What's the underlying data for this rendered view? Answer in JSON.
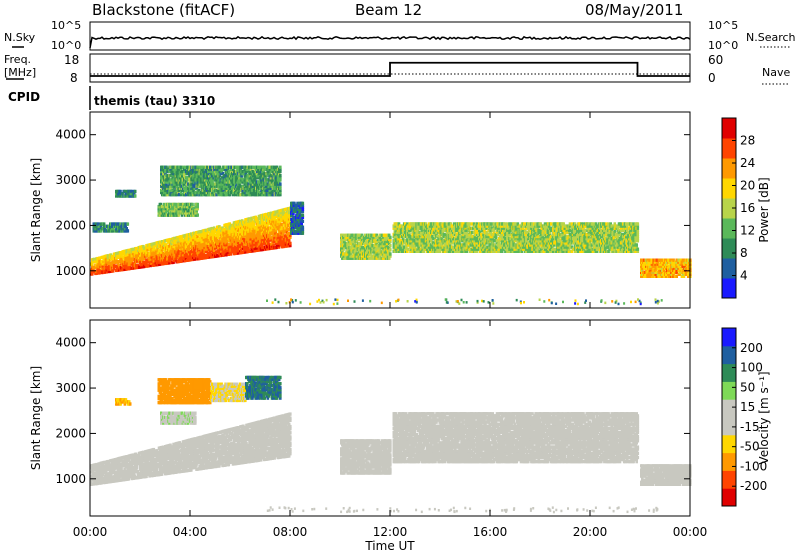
{
  "header": {
    "station": "Blackstone (fitACF)",
    "beam": "Beam 12",
    "date": "08/May/2011"
  },
  "top_panels": {
    "nsky_label": "N.Sky",
    "nsearch_label": "N.Search",
    "nsky_ticks": [
      "10^5",
      "10^0"
    ],
    "nsearch_ticks": [
      "10^5",
      "10^0"
    ],
    "freq_label": "Freq.",
    "freq_unit": "[MHz]",
    "freq_ticks": [
      "18",
      "8"
    ],
    "nave_label": "Nave",
    "nave_ticks": [
      "60",
      "0"
    ],
    "cpid_label": "CPID",
    "cpid_value": "themis (tau) 3310"
  },
  "colors": {
    "power": [
      "#1a1aff",
      "#1f5fa0",
      "#2e8b57",
      "#5ab85a",
      "#b8d44a",
      "#ffd700",
      "#ff9900",
      "#ff4400",
      "#e00000"
    ],
    "velocity": [
      "#e00000",
      "#ff4400",
      "#ff9900",
      "#ffd700",
      "#c8c8c0",
      "#c8c8c0",
      "#7ed957",
      "#2e8b57",
      "#1f5fa0",
      "#1a1aff"
    ],
    "ground_scatter": "#c8c8c0"
  },
  "chart_data": [
    {
      "type": "heatmap",
      "title": "",
      "ylabel": "Slant Range [km]",
      "ylim": [
        180,
        4500
      ],
      "yticks": [
        "1000",
        "2000",
        "3000",
        "4000"
      ],
      "colorbar": {
        "label": "Power [dB]",
        "ticks": [
          "4",
          "8",
          "12",
          "16",
          "20",
          "24",
          "28"
        ],
        "range": [
          0,
          30
        ]
      },
      "bands": [
        {
          "t0": 0.0,
          "t1": 8.0,
          "r0": 900,
          "r1": 1250,
          "r1_end": 2400,
          "value": 18
        },
        {
          "t0": 0.1,
          "t1": 1.5,
          "r0": 1850,
          "r1": 2050,
          "value": 8
        },
        {
          "t0": 1.0,
          "t1": 1.8,
          "r0": 2620,
          "r1": 2770,
          "value": 8
        },
        {
          "t0": 2.7,
          "t1": 4.3,
          "r0": 2200,
          "r1": 2480,
          "value": 12
        },
        {
          "t0": 2.8,
          "t1": 7.6,
          "r0": 2650,
          "r1": 3300,
          "value": 10
        },
        {
          "t0": 8.0,
          "t1": 8.5,
          "r0": 1800,
          "r1": 2500,
          "value": 6
        },
        {
          "t0": 10.0,
          "t1": 12.0,
          "r0": 1250,
          "r1": 1800,
          "value": 14
        },
        {
          "t0": 12.1,
          "t1": 21.9,
          "r0": 1400,
          "r1": 2050,
          "value": 14
        },
        {
          "t0": 22.0,
          "t1": 24.0,
          "r0": 850,
          "r1": 1250,
          "value": 20
        }
      ]
    },
    {
      "type": "heatmap",
      "title": "",
      "xlabel": "Time UT",
      "ylabel": "Slant Range [km]",
      "ylim": [
        180,
        4500
      ],
      "yticks": [
        "1000",
        "2000",
        "3000",
        "4000"
      ],
      "xticks": [
        "00:00",
        "04:00",
        "08:00",
        "12:00",
        "16:00",
        "20:00",
        "00:00"
      ],
      "colorbar": {
        "label": "Velocity [m s⁻¹]",
        "ticks": [
          "200",
          "100",
          "50",
          "15",
          "-15",
          "-50",
          "-100",
          "-200"
        ],
        "range": [
          -300,
          300
        ]
      },
      "bands": [
        {
          "t0": 0.0,
          "t1": 8.0,
          "r0": 850,
          "r1": 1300,
          "r1_end": 2450,
          "value": 0
        },
        {
          "t0": 1.0,
          "t1": 1.6,
          "r0": 2620,
          "r1": 2760,
          "value": -120
        },
        {
          "t0": 2.8,
          "t1": 4.2,
          "r0": 2200,
          "r1": 2460,
          "value": 40
        },
        {
          "t0": 2.7,
          "t1": 4.8,
          "r0": 2650,
          "r1": 3200,
          "value": -150
        },
        {
          "t0": 4.8,
          "t1": 6.2,
          "r0": 2700,
          "r1": 3100,
          "value": -60
        },
        {
          "t0": 6.2,
          "t1": 7.6,
          "r0": 2750,
          "r1": 3250,
          "value": 180
        },
        {
          "t0": 10.0,
          "t1": 12.0,
          "r0": 1100,
          "r1": 1850,
          "value": 0
        },
        {
          "t0": 12.1,
          "t1": 21.9,
          "r0": 1350,
          "r1": 2450,
          "value": 0
        },
        {
          "t0": 22.0,
          "t1": 24.0,
          "r0": 850,
          "r1": 1300,
          "value": 0
        }
      ]
    }
  ]
}
